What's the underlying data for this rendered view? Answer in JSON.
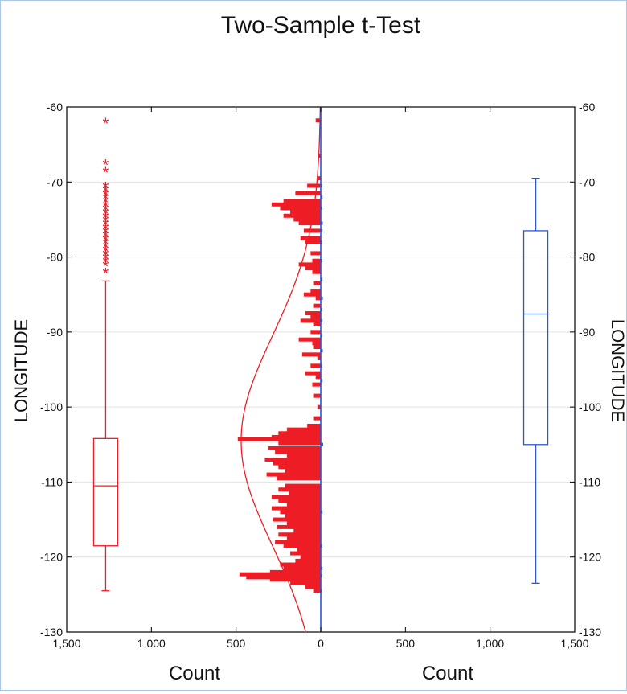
{
  "chart_data": {
    "type": "back-to-back histogram with box plots",
    "title": "Two-Sample t-Test",
    "ylabel_left": "LONGITUDE",
    "ylabel_right": "LONGITUDE",
    "xlabel_left": "Count",
    "xlabel_right": "Count",
    "ylim": [
      -130,
      -60
    ],
    "yticks": [
      -60,
      -70,
      -80,
      -90,
      -100,
      -110,
      -120,
      -130
    ],
    "xlim_left": [
      1500,
      0
    ],
    "xlim_right": [
      0,
      1500
    ],
    "xticks_left": [
      "1,500",
      "1,000",
      "500",
      "0"
    ],
    "xticks_right": [
      "0",
      "500",
      "1,000",
      "1,500"
    ],
    "colors": {
      "sample1": "#ee1c25",
      "sample2": "#2b55d6"
    },
    "sample1_histogram": [
      {
        "y": -61.8,
        "count": 30
      },
      {
        "y": -66.5,
        "count": 15
      },
      {
        "y": -69.5,
        "count": 20
      },
      {
        "y": -70.5,
        "count": 80
      },
      {
        "y": -71.5,
        "count": 150
      },
      {
        "y": -72.5,
        "count": 220
      },
      {
        "y": -73.0,
        "count": 290
      },
      {
        "y": -73.5,
        "count": 240
      },
      {
        "y": -74.0,
        "count": 180
      },
      {
        "y": -74.5,
        "count": 220
      },
      {
        "y": -75.0,
        "count": 160
      },
      {
        "y": -75.5,
        "count": 130
      },
      {
        "y": -76.5,
        "count": 100
      },
      {
        "y": -77.5,
        "count": 120
      },
      {
        "y": -78.0,
        "count": 90
      },
      {
        "y": -79.5,
        "count": 60
      },
      {
        "y": -80.5,
        "count": 50
      },
      {
        "y": -81.0,
        "count": 130
      },
      {
        "y": -81.5,
        "count": 90
      },
      {
        "y": -82.0,
        "count": 50
      },
      {
        "y": -83.5,
        "count": 40
      },
      {
        "y": -84.5,
        "count": 60
      },
      {
        "y": -85.0,
        "count": 100
      },
      {
        "y": -85.5,
        "count": 30
      },
      {
        "y": -86.5,
        "count": 40
      },
      {
        "y": -87.5,
        "count": 90
      },
      {
        "y": -88.0,
        "count": 60
      },
      {
        "y": -88.5,
        "count": 120
      },
      {
        "y": -89.0,
        "count": 40
      },
      {
        "y": -90.0,
        "count": 60
      },
      {
        "y": -91.0,
        "count": 130
      },
      {
        "y": -91.5,
        "count": 50
      },
      {
        "y": -92.0,
        "count": 40
      },
      {
        "y": -93.0,
        "count": 110
      },
      {
        "y": -93.5,
        "count": 20
      },
      {
        "y": -94.5,
        "count": 60
      },
      {
        "y": -95.5,
        "count": 90
      },
      {
        "y": -96.0,
        "count": 30
      },
      {
        "y": -97.0,
        "count": 50
      },
      {
        "y": -98.5,
        "count": 40
      },
      {
        "y": -100.0,
        "count": 20
      },
      {
        "y": -101.5,
        "count": 40
      },
      {
        "y": -102.5,
        "count": 80
      },
      {
        "y": -103.0,
        "count": 200
      },
      {
        "y": -103.5,
        "count": 250
      },
      {
        "y": -104.0,
        "count": 290
      },
      {
        "y": -104.3,
        "count": 490
      },
      {
        "y": -104.8,
        "count": 250
      },
      {
        "y": -105.5,
        "count": 310
      },
      {
        "y": -106.0,
        "count": 270
      },
      {
        "y": -106.5,
        "count": 200
      },
      {
        "y": -107.0,
        "count": 330
      },
      {
        "y": -107.5,
        "count": 280
      },
      {
        "y": -108.0,
        "count": 250
      },
      {
        "y": -108.5,
        "count": 210
      },
      {
        "y": -109.0,
        "count": 320
      },
      {
        "y": -109.5,
        "count": 260
      },
      {
        "y": -110.5,
        "count": 210
      },
      {
        "y": -111.0,
        "count": 250
      },
      {
        "y": -111.5,
        "count": 190
      },
      {
        "y": -112.0,
        "count": 290
      },
      {
        "y": -112.5,
        "count": 250
      },
      {
        "y": -113.0,
        "count": 200
      },
      {
        "y": -113.5,
        "count": 290
      },
      {
        "y": -114.0,
        "count": 240
      },
      {
        "y": -114.5,
        "count": 210
      },
      {
        "y": -115.0,
        "count": 280
      },
      {
        "y": -115.5,
        "count": 200
      },
      {
        "y": -116.0,
        "count": 260
      },
      {
        "y": -116.5,
        "count": 160
      },
      {
        "y": -117.0,
        "count": 250
      },
      {
        "y": -117.5,
        "count": 200
      },
      {
        "y": -118.0,
        "count": 270
      },
      {
        "y": -118.5,
        "count": 220
      },
      {
        "y": -119.0,
        "count": 140
      },
      {
        "y": -119.5,
        "count": 180
      },
      {
        "y": -120.0,
        "count": 120
      },
      {
        "y": -120.5,
        "count": 150
      },
      {
        "y": -121.0,
        "count": 240
      },
      {
        "y": -121.5,
        "count": 220
      },
      {
        "y": -122.0,
        "count": 300
      },
      {
        "y": -122.3,
        "count": 480
      },
      {
        "y": -122.7,
        "count": 440
      },
      {
        "y": -123.0,
        "count": 300
      },
      {
        "y": -123.5,
        "count": 180
      },
      {
        "y": -124.0,
        "count": 90
      },
      {
        "y": -124.5,
        "count": 40
      }
    ],
    "sample1_normal_curve": {
      "mean": -104.5,
      "sd": 14,
      "peak_count": 470
    },
    "sample2_histogram": [
      {
        "y": -70.5,
        "count": 8
      },
      {
        "y": -72.0,
        "count": 10
      },
      {
        "y": -73.5,
        "count": 8
      },
      {
        "y": -75.5,
        "count": 12
      },
      {
        "y": -76.5,
        "count": 10
      },
      {
        "y": -78.0,
        "count": 6
      },
      {
        "y": -80.5,
        "count": 8
      },
      {
        "y": -83.0,
        "count": 10
      },
      {
        "y": -85.5,
        "count": 12
      },
      {
        "y": -87.0,
        "count": 8
      },
      {
        "y": -88.5,
        "count": 10
      },
      {
        "y": -90.5,
        "count": 8
      },
      {
        "y": -92.5,
        "count": 12
      },
      {
        "y": -94.5,
        "count": 8
      },
      {
        "y": -96.5,
        "count": 10
      },
      {
        "y": -105.0,
        "count": 14
      },
      {
        "y": -114.0,
        "count": 10
      },
      {
        "y": -118.5,
        "count": 8
      },
      {
        "y": -121.5,
        "count": 10
      },
      {
        "y": -122.5,
        "count": 8
      },
      {
        "y": -124.5,
        "count": 6
      }
    ],
    "sample1_boxplot": {
      "x_count": 1270,
      "whisker_high": -83.2,
      "q3": -104.2,
      "median": -110.5,
      "q1": -118.5,
      "whisker_low": -124.5,
      "outliers": [
        -62.0,
        -67.5,
        -68.5,
        -70.5,
        -71.0,
        -71.5,
        -72.0,
        -72.5,
        -73.0,
        -73.5,
        -74.0,
        -74.5,
        -75.0,
        -75.5,
        -76.0,
        -76.5,
        -77.0,
        -77.5,
        -78.0,
        -78.5,
        -79.0,
        -79.5,
        -80.0,
        -80.5,
        -81.0,
        -82.0
      ]
    },
    "sample2_boxplot": {
      "x_count": 1270,
      "whisker_high": -69.5,
      "q3": -76.5,
      "median": -87.6,
      "q1": -105.0,
      "whisker_low": -123.5,
      "outliers": []
    }
  }
}
